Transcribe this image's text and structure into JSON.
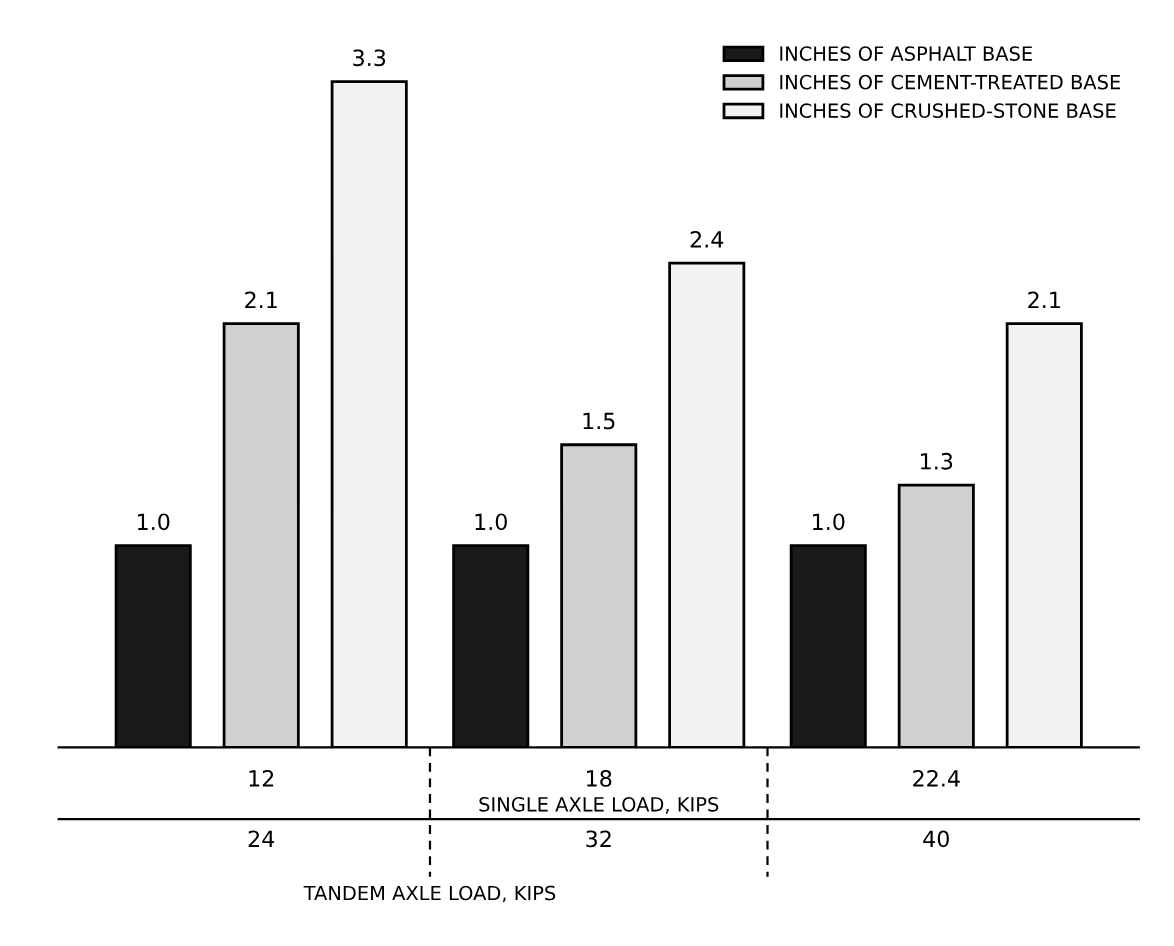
{
  "chart_data": {
    "type": "bar",
    "categories": [
      "12",
      "18",
      "22.4"
    ],
    "xlabel": "SINGLE AXLE LOAD, KIPS",
    "series": [
      {
        "name": "INCHES OF ASPHALT BASE",
        "color": "#1a1a1a",
        "values": [
          1.0,
          1.0,
          1.0
        ],
        "value_labels": [
          "1.0",
          "1.0",
          "1.0"
        ]
      },
      {
        "name": "INCHES OF CEMENT-TREATED BASE",
        "color": "#d0d0d0",
        "values": [
          2.1,
          1.5,
          1.3
        ],
        "value_labels": [
          "2.1",
          "1.5",
          "1.3"
        ]
      },
      {
        "name": "INCHES OF CRUSHED-STONE BASE",
        "color": "#f2f2f2",
        "values": [
          3.3,
          2.4,
          2.1
        ],
        "value_labels": [
          "3.3",
          "2.4",
          "2.1"
        ]
      }
    ],
    "annotations": [
      "24",
      "32",
      "40",
      "TANDEM AXLE LOAD, KIPS"
    ],
    "legend": "top right",
    "grid": false
  }
}
